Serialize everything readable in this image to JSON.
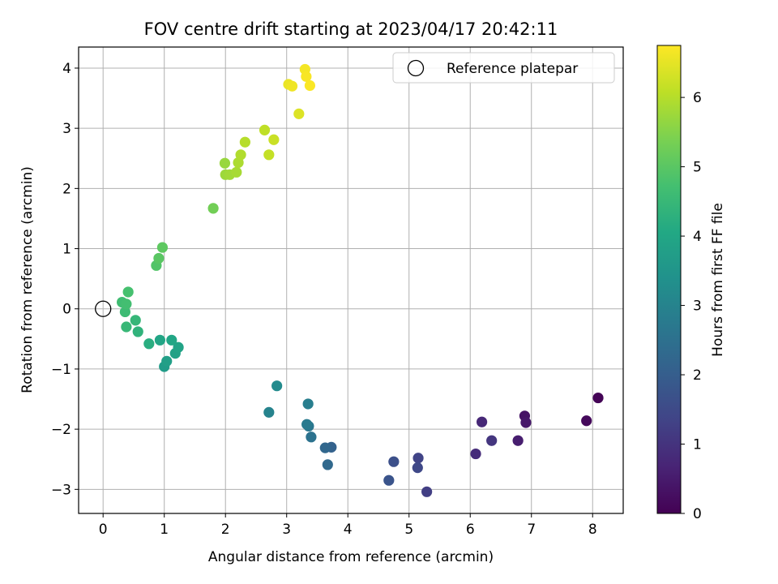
{
  "chart_data": {
    "type": "scatter",
    "title": "FOV centre drift starting at 2023/04/17 20:42:11",
    "xlabel": "Angular distance from reference (arcmin)",
    "ylabel": "Rotation from reference (arcmin)",
    "xlim": [
      -0.4,
      8.5
    ],
    "ylim": [
      -3.4,
      4.35
    ],
    "xticks": [
      0,
      1,
      2,
      3,
      4,
      5,
      6,
      7,
      8
    ],
    "yticks": [
      -3,
      -2,
      -1,
      0,
      1,
      2,
      3,
      4
    ],
    "grid": true,
    "legend": {
      "position": "top-right",
      "entries": [
        "Reference platepar"
      ]
    },
    "reference_point": {
      "x": 0,
      "y": 0,
      "label": "Reference platepar"
    },
    "colorbar": {
      "label": "Hours from first FF file",
      "colormap": "viridis",
      "range": [
        0,
        6.75
      ],
      "ticks": [
        0,
        1,
        2,
        3,
        4,
        5,
        6
      ]
    },
    "series": [
      {
        "points": [
          {
            "x": 8.09,
            "y": -1.48,
            "c": 0.05
          },
          {
            "x": 7.9,
            "y": -1.86,
            "c": 0.15
          },
          {
            "x": 6.89,
            "y": -1.78,
            "c": 0.35
          },
          {
            "x": 6.91,
            "y": -1.89,
            "c": 0.45
          },
          {
            "x": 6.78,
            "y": -2.19,
            "c": 0.55
          },
          {
            "x": 6.19,
            "y": -1.88,
            "c": 0.75
          },
          {
            "x": 6.09,
            "y": -2.41,
            "c": 0.85
          },
          {
            "x": 6.35,
            "y": -2.19,
            "c": 1.05
          },
          {
            "x": 5.29,
            "y": -3.04,
            "c": 1.25
          },
          {
            "x": 5.15,
            "y": -2.48,
            "c": 1.35
          },
          {
            "x": 5.14,
            "y": -2.64,
            "c": 1.45
          },
          {
            "x": 4.75,
            "y": -2.54,
            "c": 1.65
          },
          {
            "x": 4.67,
            "y": -2.85,
            "c": 1.75
          },
          {
            "x": 3.73,
            "y": -2.3,
            "c": 2.1
          },
          {
            "x": 3.63,
            "y": -2.31,
            "c": 2.25
          },
          {
            "x": 3.67,
            "y": -2.59,
            "c": 2.3
          },
          {
            "x": 3.4,
            "y": -2.13,
            "c": 2.55
          },
          {
            "x": 3.36,
            "y": -1.95,
            "c": 2.65
          },
          {
            "x": 3.33,
            "y": -1.92,
            "c": 2.75
          },
          {
            "x": 3.35,
            "y": -1.58,
            "c": 2.85
          },
          {
            "x": 2.71,
            "y": -1.72,
            "c": 3.0
          },
          {
            "x": 2.84,
            "y": -1.28,
            "c": 3.2
          },
          {
            "x": 1.0,
            "y": -0.96,
            "c": 3.7
          },
          {
            "x": 1.04,
            "y": -0.87,
            "c": 3.8
          },
          {
            "x": 1.18,
            "y": -0.74,
            "c": 3.85
          },
          {
            "x": 1.23,
            "y": -0.64,
            "c": 3.9
          },
          {
            "x": 0.93,
            "y": -0.52,
            "c": 3.95
          },
          {
            "x": 1.12,
            "y": -0.52,
            "c": 4.0
          },
          {
            "x": 0.75,
            "y": -0.58,
            "c": 4.2
          },
          {
            "x": 0.57,
            "y": -0.38,
            "c": 4.35
          },
          {
            "x": 0.53,
            "y": -0.19,
            "c": 4.45
          },
          {
            "x": 0.38,
            "y": -0.3,
            "c": 4.5
          },
          {
            "x": 0.36,
            "y": -0.05,
            "c": 4.6
          },
          {
            "x": 0.31,
            "y": 0.11,
            "c": 4.65
          },
          {
            "x": 0.38,
            "y": 0.08,
            "c": 4.7
          },
          {
            "x": 0.41,
            "y": 0.28,
            "c": 4.75
          },
          {
            "x": 0.87,
            "y": 0.72,
            "c": 4.9
          },
          {
            "x": 0.91,
            "y": 0.84,
            "c": 5.0
          },
          {
            "x": 0.97,
            "y": 1.02,
            "c": 5.05
          },
          {
            "x": 1.8,
            "y": 1.67,
            "c": 5.3
          },
          {
            "x": 1.99,
            "y": 2.42,
            "c": 5.7
          },
          {
            "x": 2.0,
            "y": 2.23,
            "c": 5.75
          },
          {
            "x": 2.07,
            "y": 2.23,
            "c": 5.8
          },
          {
            "x": 2.18,
            "y": 2.27,
            "c": 5.85
          },
          {
            "x": 2.21,
            "y": 2.43,
            "c": 5.9
          },
          {
            "x": 2.25,
            "y": 2.56,
            "c": 5.95
          },
          {
            "x": 2.32,
            "y": 2.77,
            "c": 6.0
          },
          {
            "x": 2.64,
            "y": 2.97,
            "c": 6.1
          },
          {
            "x": 2.71,
            "y": 2.56,
            "c": 6.15
          },
          {
            "x": 2.79,
            "y": 2.81,
            "c": 6.2
          },
          {
            "x": 3.2,
            "y": 3.24,
            "c": 6.4
          },
          {
            "x": 3.03,
            "y": 3.73,
            "c": 6.55
          },
          {
            "x": 3.09,
            "y": 3.7,
            "c": 6.6
          },
          {
            "x": 3.3,
            "y": 3.98,
            "c": 6.65
          },
          {
            "x": 3.32,
            "y": 3.86,
            "c": 6.7
          },
          {
            "x": 3.38,
            "y": 3.71,
            "c": 6.72
          }
        ]
      }
    ]
  }
}
